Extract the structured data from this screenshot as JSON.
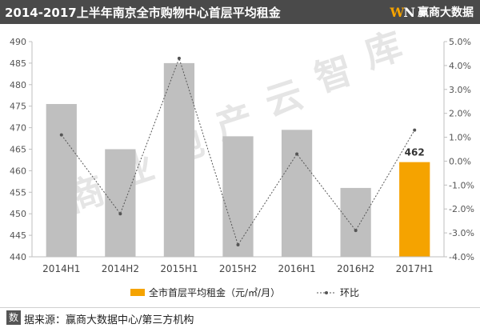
{
  "header": {
    "title": "2014-2017上半年南京全市购物中心首层平均租金",
    "brand_logo_letters": [
      "W",
      "N"
    ],
    "brand_name": "赢商大数据"
  },
  "watermark": {
    "text": "商业地产云智库"
  },
  "source": {
    "icon_char": "数",
    "text": "据来源：赢商大数据中心/第三方机构"
  },
  "colors": {
    "bar_gray": "#bfbfbf",
    "bar_highlight": "#f5a300",
    "line": "#555555",
    "header_bg": "#4a4a4a"
  },
  "chart_data": {
    "type": "bar",
    "categories": [
      "2014H1",
      "2014H2",
      "2015H1",
      "2015H2",
      "2016H1",
      "2016H2",
      "2017H1"
    ],
    "series": [
      {
        "name": "全市首层平均租金（元/㎡/月）",
        "type": "bar",
        "axis": "left",
        "values": [
          475.5,
          465,
          485,
          468,
          469.5,
          456,
          462
        ],
        "highlight_index": 6,
        "data_labels": [
          null,
          null,
          null,
          null,
          null,
          null,
          "462"
        ]
      },
      {
        "name": "环比",
        "type": "line",
        "axis": "right",
        "values": [
          1.1,
          -2.2,
          4.3,
          -3.5,
          0.3,
          -2.9,
          1.3
        ],
        "unit": "%"
      }
    ],
    "y_left": {
      "min": 440,
      "max": 490,
      "ticks": [
        "440",
        "445",
        "450",
        "455",
        "460",
        "465",
        "470",
        "475",
        "480",
        "485",
        "490"
      ]
    },
    "y_right": {
      "min": -4,
      "max": 5,
      "ticks": [
        "-4.0%",
        "-3.0%",
        "-2.0%",
        "-1.0%",
        "0.0%",
        "1.0%",
        "2.0%",
        "3.0%",
        "4.0%",
        "5.0%"
      ]
    },
    "legend_position": "bottom",
    "grid": false
  }
}
